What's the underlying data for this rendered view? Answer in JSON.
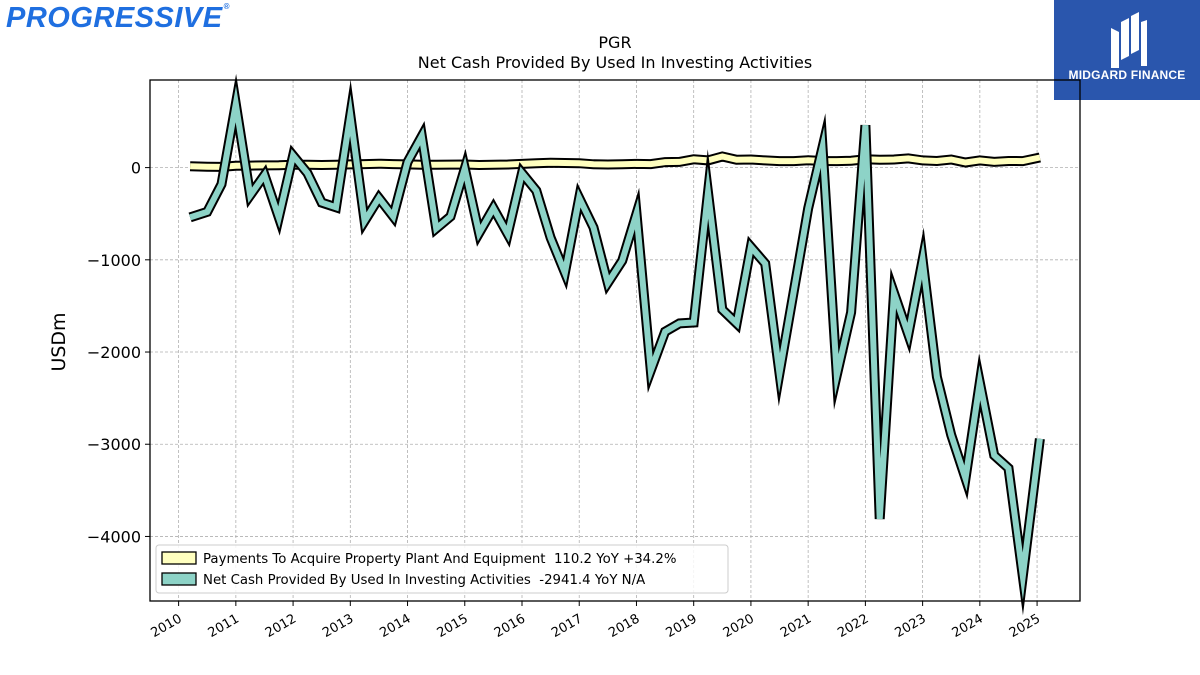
{
  "logos": {
    "left_text": "PROGRESSIVE",
    "left_mark": "®",
    "right_text": "MIDGARD FINANCE"
  },
  "chart_data": {
    "type": "line",
    "title": "PGR",
    "subtitle": "Net Cash Provided By Used In Investing Activities",
    "ylabel": "USDm",
    "xlabel": "",
    "ylim": [
      -4700,
      950
    ],
    "xlim": [
      2009.5,
      2025.75
    ],
    "x_ticks": [
      2010,
      2011,
      2012,
      2013,
      2014,
      2015,
      2016,
      2017,
      2018,
      2019,
      2020,
      2021,
      2022,
      2023,
      2024,
      2025
    ],
    "y_ticks": [
      0,
      -1000,
      -2000,
      -3000,
      -4000
    ],
    "y_tick_labels": [
      "0",
      "−1000",
      "−2000",
      "−3000",
      "−4000"
    ],
    "grid": true,
    "legend_position": "lower-left",
    "series": [
      {
        "name": "Payments To Acquire Property Plant And Equipment",
        "legend_label": "Payments To Acquire Property Plant And Equipment  110.2 YoY +34.2%",
        "color": "#ffffbf",
        "x": [
          2010.2,
          2010.5,
          2010.75,
          2011.0,
          2011.25,
          2011.5,
          2011.75,
          2012.0,
          2012.25,
          2012.5,
          2012.75,
          2013.0,
          2013.25,
          2013.5,
          2013.75,
          2014.0,
          2014.25,
          2014.5,
          2014.75,
          2015.0,
          2015.25,
          2015.5,
          2015.75,
          2016.0,
          2016.25,
          2016.5,
          2016.75,
          2017.0,
          2017.25,
          2017.5,
          2017.75,
          2018.0,
          2018.25,
          2018.5,
          2018.75,
          2019.0,
          2019.25,
          2019.5,
          2019.75,
          2020.0,
          2020.25,
          2020.5,
          2020.75,
          2021.0,
          2021.25,
          2021.5,
          2021.75,
          2022.0,
          2022.25,
          2022.5,
          2022.75,
          2023.0,
          2023.25,
          2023.5,
          2023.75,
          2024.0,
          2024.25,
          2024.5,
          2024.75,
          2025.05
        ],
        "values": [
          15,
          10,
          8,
          20,
          22,
          24,
          25,
          30,
          32,
          28,
          30,
          35,
          38,
          42,
          38,
          35,
          30,
          32,
          33,
          34,
          28,
          32,
          34,
          40,
          48,
          52,
          50,
          48,
          36,
          34,
          36,
          40,
          38,
          60,
          62,
          90,
          78,
          120,
          85,
          88,
          78,
          70,
          70,
          80,
          72,
          70,
          75,
          90,
          85,
          88,
          100,
          78,
          72,
          88,
          55,
          78,
          62,
          72,
          70,
          110
        ]
      },
      {
        "name": "Net Cash Provided By Used In Investing Activities",
        "legend_label": "Net Cash Provided By Used In Investing Activities  -2941.4 YoY N/A",
        "color": "#8dd3c7",
        "x": [
          2010.2,
          2010.5,
          2010.75,
          2011.0,
          2011.25,
          2011.5,
          2011.75,
          2012.0,
          2012.25,
          2012.5,
          2012.75,
          2013.0,
          2013.25,
          2013.5,
          2013.75,
          2014.0,
          2014.25,
          2014.5,
          2014.75,
          2015.0,
          2015.25,
          2015.5,
          2015.75,
          2016.0,
          2016.25,
          2016.5,
          2016.75,
          2017.0,
          2017.25,
          2017.5,
          2017.75,
          2018.0,
          2018.25,
          2018.5,
          2018.75,
          2019.0,
          2019.25,
          2019.5,
          2019.75,
          2020.0,
          2020.25,
          2020.5,
          2020.75,
          2021.0,
          2021.25,
          2021.5,
          2021.75,
          2022.0,
          2022.25,
          2022.5,
          2022.75,
          2023.0,
          2023.25,
          2023.5,
          2023.75,
          2024.0,
          2024.25,
          2024.5,
          2024.75,
          2025.05
        ],
        "values": [
          -540,
          -480,
          -180,
          690,
          -300,
          -80,
          -540,
          130,
          -60,
          -380,
          -430,
          570,
          -580,
          -330,
          -530,
          60,
          340,
          -660,
          -530,
          -10,
          -710,
          -440,
          -720,
          -60,
          -250,
          -760,
          -1140,
          -330,
          -650,
          -1250,
          -1010,
          -500,
          -2200,
          -1780,
          -1690,
          -1680,
          -270,
          -1540,
          -1690,
          -860,
          -1040,
          -2230,
          -1340,
          -440,
          220,
          -2250,
          -1570,
          460,
          -3810,
          -1360,
          -1810,
          -1000,
          -2270,
          -2900,
          -3370,
          -2330,
          -3120,
          -3260,
          -4430,
          -2941
        ]
      }
    ]
  }
}
